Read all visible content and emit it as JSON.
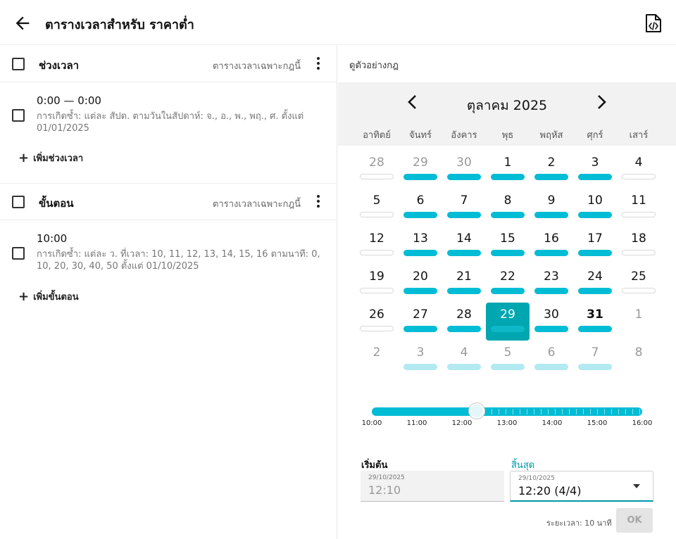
{
  "header": {
    "title": "ตารางเวลาสำหรับ ราคาต่ำ"
  },
  "left": {
    "intervals": {
      "title": "ช่วงเวลา",
      "hint": "ตารางเวลาเฉพาะกฎนี้",
      "item": {
        "title": "0:00 — 0:00",
        "desc": "การเกิดซ้ำ: แต่ละ สัปด. ตามวันในสัปดาห์: จ., อ., พ., พฤ., ศ. ตั้งแต่ 01/01/2025"
      },
      "add_label": "เพิ่มช่วงเวลา"
    },
    "steps": {
      "title": "ขั้นตอน",
      "hint": "ตารางเวลาเฉพาะกฎนี้",
      "item": {
        "title": "10:00",
        "desc": "การเกิดซ้ำ: แต่ละ ว. ที่เวลา: 10, 11, 12, 13, 14, 15, 16 ตามนาที: 0, 10, 20, 30, 40, 50 ตั้งแต่ 01/10/2025"
      },
      "add_label": "เพิ่มขั้นตอน"
    }
  },
  "right": {
    "preview_label": "ดูตัวอย่างกฎ",
    "calendar": {
      "month_label": "ตุลาคม 2025",
      "weekdays": [
        "อาทิตย์",
        "จันทร์",
        "อังคาร",
        "พุธ",
        "พฤหัส",
        "ศุกร์",
        "เสาร์"
      ],
      "weeks": [
        [
          {
            "n": "28",
            "muted": true,
            "bar": "empty"
          },
          {
            "n": "29",
            "muted": true,
            "bar": "full"
          },
          {
            "n": "30",
            "muted": true,
            "bar": "full"
          },
          {
            "n": "1",
            "bar": "full"
          },
          {
            "n": "2",
            "bar": "full"
          },
          {
            "n": "3",
            "bar": "full"
          },
          {
            "n": "4",
            "bar": "empty"
          }
        ],
        [
          {
            "n": "5",
            "bar": "empty"
          },
          {
            "n": "6",
            "bar": "full"
          },
          {
            "n": "7",
            "bar": "full"
          },
          {
            "n": "8",
            "bar": "full"
          },
          {
            "n": "9",
            "bar": "full"
          },
          {
            "n": "10",
            "bar": "full"
          },
          {
            "n": "11",
            "bar": "empty"
          }
        ],
        [
          {
            "n": "12",
            "bar": "empty"
          },
          {
            "n": "13",
            "bar": "full"
          },
          {
            "n": "14",
            "bar": "full"
          },
          {
            "n": "15",
            "bar": "full"
          },
          {
            "n": "16",
            "bar": "full"
          },
          {
            "n": "17",
            "bar": "full"
          },
          {
            "n": "18",
            "bar": "empty"
          }
        ],
        [
          {
            "n": "19",
            "bar": "empty"
          },
          {
            "n": "20",
            "bar": "full"
          },
          {
            "n": "21",
            "bar": "full"
          },
          {
            "n": "22",
            "bar": "full"
          },
          {
            "n": "23",
            "bar": "full"
          },
          {
            "n": "24",
            "bar": "full"
          },
          {
            "n": "25",
            "bar": "empty"
          }
        ],
        [
          {
            "n": "26",
            "bar": "empty"
          },
          {
            "n": "27",
            "bar": "full"
          },
          {
            "n": "28",
            "bar": "full"
          },
          {
            "n": "29",
            "bar": "full",
            "selected": true
          },
          {
            "n": "30",
            "bar": "full"
          },
          {
            "n": "31",
            "bar": "full",
            "bold": true
          },
          {
            "n": "1",
            "muted": true,
            "bar": "none"
          }
        ],
        [
          {
            "n": "2",
            "muted": true,
            "bar": "none"
          },
          {
            "n": "3",
            "muted": true,
            "bar": "faded"
          },
          {
            "n": "4",
            "muted": true,
            "bar": "faded"
          },
          {
            "n": "5",
            "muted": true,
            "bar": "faded"
          },
          {
            "n": "6",
            "muted": true,
            "bar": "faded"
          },
          {
            "n": "7",
            "muted": true,
            "bar": "faded"
          },
          {
            "n": "8",
            "muted": true,
            "bar": "none"
          }
        ]
      ]
    },
    "timeline": {
      "labels": [
        "10:00",
        "11:00",
        "12:00",
        "13:00",
        "14:00",
        "15:00",
        "16:00"
      ],
      "position_fraction": 0.389
    },
    "start": {
      "label": "เริ่มต้น",
      "date": "29/10/2025",
      "time": "12:10"
    },
    "end": {
      "label": "สิ้นสุด",
      "date": "29/10/2025",
      "time": "12:20 (4/4)"
    },
    "duration_text": "ระยะเวลา: 10 นาที",
    "ok_label": "OK"
  },
  "colors": {
    "accent": "#00bcd4",
    "selected": "#00a6b0",
    "end_label": "#0097a7"
  }
}
